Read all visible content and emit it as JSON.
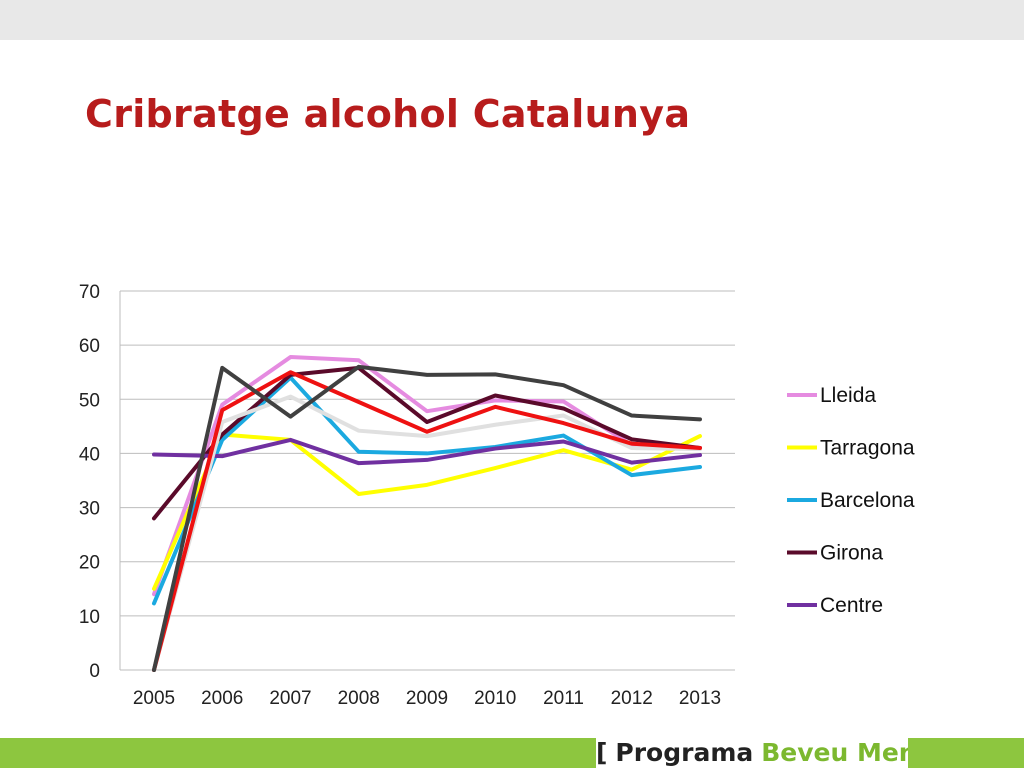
{
  "slide": {
    "title": "Cribratge alcohol Catalunya"
  },
  "footer": {
    "open": "[",
    "word1": "Programa",
    "word2": "Beveu Menys",
    "close": "]"
  },
  "colors": {
    "title": "#b71c1c",
    "footer_band": "#8dc63f"
  },
  "chart_data": {
    "type": "line",
    "title": "",
    "xlabel": "",
    "ylabel": "",
    "ylim": [
      0,
      70
    ],
    "yticks": [
      "0",
      "10",
      "20",
      "30",
      "40",
      "50",
      "60",
      "70"
    ],
    "categories": [
      "2005",
      "2006",
      "2007",
      "2008",
      "2009",
      "2010",
      "2011",
      "2012",
      "2013"
    ],
    "grid": true,
    "legend_position": "right",
    "series": [
      {
        "name": "Lleida",
        "color": "#e58be0",
        "values": [
          14,
          49,
          57.8,
          57.2,
          47.8,
          49.8,
          49.6,
          41.5,
          41.0
        ]
      },
      {
        "name": "Tarragona",
        "color": "#ffff00",
        "values": [
          15,
          43.5,
          42.5,
          32.5,
          34.2,
          37.3,
          40.6,
          37.0,
          43.2
        ]
      },
      {
        "name": "Barcelona",
        "color": "#1ba9e0",
        "values": [
          12.3,
          42.5,
          54.0,
          40.3,
          40.0,
          41.2,
          43.3,
          36.0,
          37.5
        ]
      },
      {
        "name": "Girona",
        "color": "#5a0a2a",
        "values": [
          28.0,
          43.5,
          54.5,
          55.8,
          45.8,
          50.7,
          48.3,
          42.6,
          41.0
        ]
      },
      {
        "name": "Centre",
        "color": "#7030a0",
        "values": [
          39.8,
          39.5,
          42.5,
          38.2,
          38.8,
          40.9,
          42.2,
          38.3,
          39.7
        ]
      },
      {
        "color": "#e0e0e0",
        "values": [
          0,
          45.8,
          50.5,
          44.2,
          43.2,
          45.3,
          47.0,
          41.0,
          40.8
        ]
      },
      {
        "color": "#ee1111",
        "values": [
          0,
          48.0,
          55.0,
          49.5,
          44.0,
          48.6,
          45.6,
          41.8,
          41.0
        ]
      },
      {
        "color": "#404040",
        "values": [
          0,
          55.8,
          46.8,
          56.0,
          54.5,
          54.6,
          52.6,
          47.0,
          46.3
        ]
      }
    ]
  }
}
